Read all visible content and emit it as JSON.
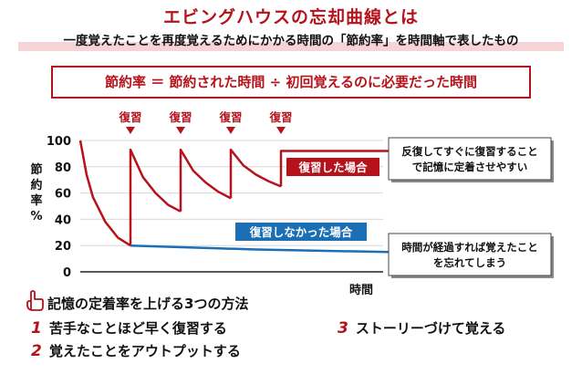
{
  "title": "エビングハウスの忘却曲線とは",
  "subtitle": "一度覚えたことを再度覚えるためにかかる時間の「節約率」を時間軸で表したもの",
  "formula": "節約率 ＝ 節約された時間 ÷ 初回覚えるのに必要だった時間",
  "chart_data": {
    "type": "line",
    "xlabel": "時間",
    "ylabel": "節約率%",
    "ylim": [
      0,
      100
    ],
    "yticks": [
      0,
      20,
      40,
      60,
      80,
      100
    ],
    "grid": "horizontal",
    "review_marker_label": "復習",
    "review_points": [
      2,
      4,
      6,
      8
    ],
    "series": [
      {
        "name": "復習した場合",
        "color": "#b5121b",
        "segments": [
          {
            "x": [
              0,
              0.25,
              0.5,
              1.0,
              1.5,
              2.0
            ],
            "y": [
              100,
              74,
              57,
              38,
              26,
              20
            ]
          },
          {
            "x": [
              2.0,
              2.0,
              2.5,
              3.0,
              3.5,
              4.0
            ],
            "y": [
              20,
              93,
              72,
              60,
              51,
              46
            ]
          },
          {
            "x": [
              4.0,
              4.0,
              4.5,
              5.0,
              5.5,
              6.0
            ],
            "y": [
              46,
              93,
              77,
              68,
              61,
              56
            ]
          },
          {
            "x": [
              6.0,
              6.0,
              6.5,
              7.0,
              7.5,
              8.0
            ],
            "y": [
              56,
              93,
              81,
              74,
              69,
              65
            ]
          },
          {
            "x": [
              8.0,
              8.0,
              12.5
            ],
            "y": [
              65,
              92,
              92
            ]
          }
        ]
      },
      {
        "name": "復習しなかった場合",
        "color": "#1a6fb5",
        "segments": [
          {
            "x": [
              2.0,
              7.0,
              12.5
            ],
            "y": [
              20,
              17,
              15
            ]
          }
        ]
      }
    ],
    "annotations": [
      {
        "series": "復習した場合",
        "lines": [
          "反復してすぐに復習すること",
          "で記憶に定着させやすい"
        ]
      },
      {
        "series": "復習しなかった場合",
        "lines": [
          "時間が経過すれば覚えたこと",
          "を忘れてしまう"
        ]
      }
    ]
  },
  "methods": {
    "heading": "記憶の定着率を上げる3つの方法",
    "items": [
      {
        "num": "1",
        "text": "苦手なことほど早く復習する"
      },
      {
        "num": "2",
        "text": "覚えたことをアウトプットする"
      },
      {
        "num": "3",
        "text": "ストーリーづけて覚える"
      }
    ]
  },
  "colors": {
    "accent": "#b5121b",
    "blue": "#1a6fb5",
    "pink": "#f6d3d5"
  }
}
